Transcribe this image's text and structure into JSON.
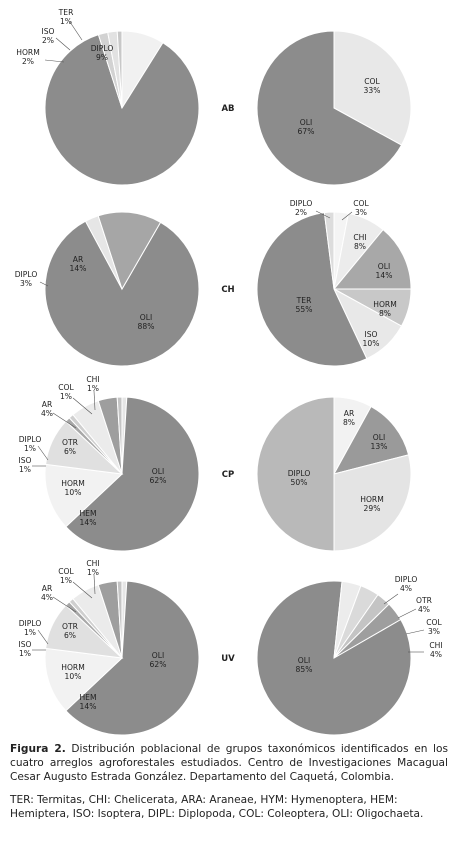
{
  "colors": {
    "OLI": "#8c8c8c",
    "COL": "#e8e8e8",
    "DIPLO": "#e4e4e4",
    "AR": "#a6a6a6",
    "HORM": "#dcdcdc",
    "ISO": "#bbbbbb",
    "TER": "#d8d8d8",
    "CHI": "#f0f0f0",
    "OTR": "#ececec",
    "HEM": "#f2f2f2",
    "DIPLO_CP": "#b9b9b9",
    "COL_small": "#bdbdbd",
    "AR_small": "#a0a0a0",
    "TER_large": "#8c8c8c",
    "OLI_mid": "#a0a0a0",
    "HORM_light": "#e4e4e4"
  },
  "chart_data": [
    {
      "type": "pie",
      "panel": "AB-left",
      "slices": [
        {
          "label": "DIPLO",
          "value": 9,
          "color": "#f1f1f1"
        },
        {
          "label": "OLI",
          "value": 87,
          "color": "#8c8c8c",
          "hide_label": true
        },
        {
          "label": "HORM",
          "value": 2,
          "color": "#d2d2d2"
        },
        {
          "label": "ISO",
          "value": 2,
          "color": "#e2e2e2"
        },
        {
          "label": "TER",
          "value": 1,
          "color": "#c8c8c8"
        }
      ]
    },
    {
      "type": "pie",
      "panel": "AB-right",
      "slices": [
        {
          "label": "COL",
          "value": 33,
          "color": "#e8e8e8"
        },
        {
          "label": "OLI",
          "value": 67,
          "color": "#8c8c8c"
        }
      ]
    },
    {
      "type": "pie",
      "panel": "CH-left",
      "slices": [
        {
          "label": "OLI",
          "value": 88,
          "color": "#8c8c8c"
        },
        {
          "label": "DIPLO",
          "value": 3,
          "color": "#e6e6e6"
        },
        {
          "label": "AR",
          "value": 14,
          "color": "#a6a6a6"
        }
      ]
    },
    {
      "type": "pie",
      "panel": "CH-right",
      "slices": [
        {
          "label": "COL",
          "value": 3,
          "color": "#f4f4f4"
        },
        {
          "label": "CHI",
          "value": 8,
          "color": "#ececec"
        },
        {
          "label": "OLI",
          "value": 14,
          "color": "#a8a8a8"
        },
        {
          "label": "HORM",
          "value": 8,
          "color": "#c8c8c8"
        },
        {
          "label": "ISO",
          "value": 10,
          "color": "#e8e8e8"
        },
        {
          "label": "TER",
          "value": 55,
          "color": "#8c8c8c"
        },
        {
          "label": "DIPLO",
          "value": 2,
          "color": "#dcdcdc"
        }
      ]
    },
    {
      "type": "pie",
      "panel": "CP-left",
      "slices": [
        {
          "label": "CHI",
          "value": 1,
          "color": "#e6e6e6"
        },
        {
          "label": "OLI",
          "value": 62,
          "color": "#8c8c8c"
        },
        {
          "label": "HEM",
          "value": 14,
          "color": "#f2f2f2"
        },
        {
          "label": "HORM",
          "value": 10,
          "color": "#e0e0e0"
        },
        {
          "label": "ISO",
          "value": 1,
          "color": "#a8a8a8"
        },
        {
          "label": "DIPLO",
          "value": 1,
          "color": "#cfcfcf"
        },
        {
          "label": "OTR",
          "value": 6,
          "color": "#ebebeb"
        },
        {
          "label": "AR",
          "value": 4,
          "color": "#9e9e9e"
        },
        {
          "label": "COL",
          "value": 1,
          "color": "#c4c4c4"
        }
      ]
    },
    {
      "type": "pie",
      "panel": "CP-right",
      "slices": [
        {
          "label": "AR",
          "value": 8,
          "color": "#f2f2f2"
        },
        {
          "label": "OLI",
          "value": 13,
          "color": "#9a9a9a"
        },
        {
          "label": "HORM",
          "value": 29,
          "color": "#e4e4e4"
        },
        {
          "label": "DIPLO",
          "value": 50,
          "color": "#b9b9b9"
        }
      ]
    },
    {
      "type": "pie",
      "panel": "UV-left",
      "slices": [
        {
          "label": "CHI",
          "value": 1,
          "color": "#e6e6e6"
        },
        {
          "label": "OLI",
          "value": 62,
          "color": "#8c8c8c"
        },
        {
          "label": "HEM",
          "value": 14,
          "color": "#f2f2f2"
        },
        {
          "label": "HORM",
          "value": 10,
          "color": "#e0e0e0"
        },
        {
          "label": "ISO",
          "value": 1,
          "color": "#a8a8a8"
        },
        {
          "label": "DIPLO",
          "value": 1,
          "color": "#cfcfcf"
        },
        {
          "label": "OTR",
          "value": 6,
          "color": "#ebebeb"
        },
        {
          "label": "AR",
          "value": 4,
          "color": "#9e9e9e"
        },
        {
          "label": "COL",
          "value": 1,
          "color": "#c4c4c4"
        }
      ]
    },
    {
      "type": "pie",
      "panel": "UV-right",
      "slices": [
        {
          "label": "OLI",
          "value": 85,
          "color": "#8c8c8c"
        },
        {
          "label": "DIPLO",
          "value": 4,
          "color": "#ececec"
        },
        {
          "label": "OTR",
          "value": 4,
          "color": "#dadada"
        },
        {
          "label": "COL",
          "value": 3,
          "color": "#c4c4c4"
        },
        {
          "label": "CHI",
          "value": 4,
          "color": "#9e9e9e"
        }
      ]
    }
  ],
  "row_labels": [
    "AB",
    "CH",
    "CP",
    "UV"
  ],
  "caption": {
    "lead": "Figura 2.",
    "text": " Distribución poblacional de grupos taxonómicos identificados en los cuatro arreglos agroforestales estudiados. Centro de Investigaciones Macagual Cesar Augusto Estrada González. Departamento del Caquetá, Colombia.",
    "legend": "TER: Termitas, CHI: Chelicerata, ARA: Araneae, HYM: Hymenoptera, HEM: Hemiptera, ISO: Isoptera, DIPL: Diplopoda, COL: Coleoptera, OLI: Oligochaeta."
  }
}
